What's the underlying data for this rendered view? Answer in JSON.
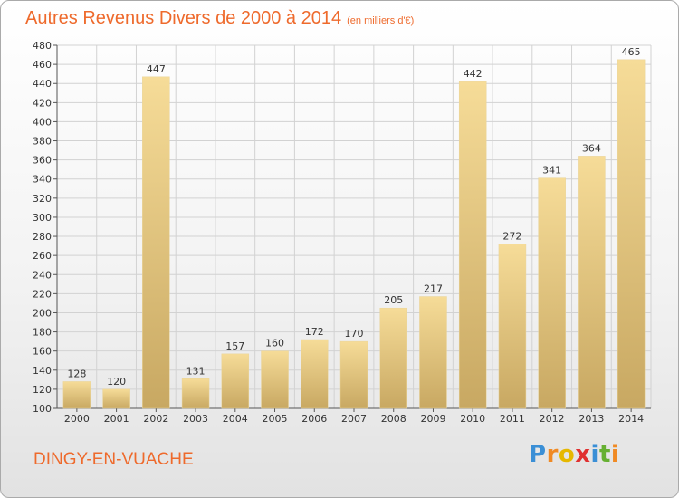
{
  "header": {
    "title": "Autres Revenus Divers de 2000 à 2014",
    "unit": "(en milliers d'€)"
  },
  "footer": {
    "commune": "DINGY-EN-VUACHE",
    "logo_letters": [
      "P",
      "r",
      "o",
      "x",
      "i",
      "t",
      "i"
    ],
    "logo_colors": [
      "#3a8fd6",
      "#f08a24",
      "#e6b800",
      "#e03030",
      "#3a8fd6",
      "#66b032",
      "#f08a24"
    ]
  },
  "colors": {
    "title": "#ee6a2c",
    "bar_light": "#f6dc98",
    "bar_dark": "#c8a862",
    "grid": "#d2d2d2"
  },
  "chart_data": {
    "type": "bar",
    "title": "Autres Revenus Divers de 2000 à 2014",
    "subtitle": "(en milliers d'€)",
    "categories": [
      "2000",
      "2001",
      "2002",
      "2003",
      "2004",
      "2005",
      "2006",
      "2007",
      "2008",
      "2009",
      "2010",
      "2011",
      "2012",
      "2013",
      "2014"
    ],
    "values": [
      128,
      120,
      447,
      131,
      157,
      160,
      172,
      170,
      205,
      217,
      442,
      272,
      341,
      364,
      465
    ],
    "ylim": [
      100,
      480
    ],
    "ytick_step": 20,
    "grid": true,
    "data_labels": true
  }
}
